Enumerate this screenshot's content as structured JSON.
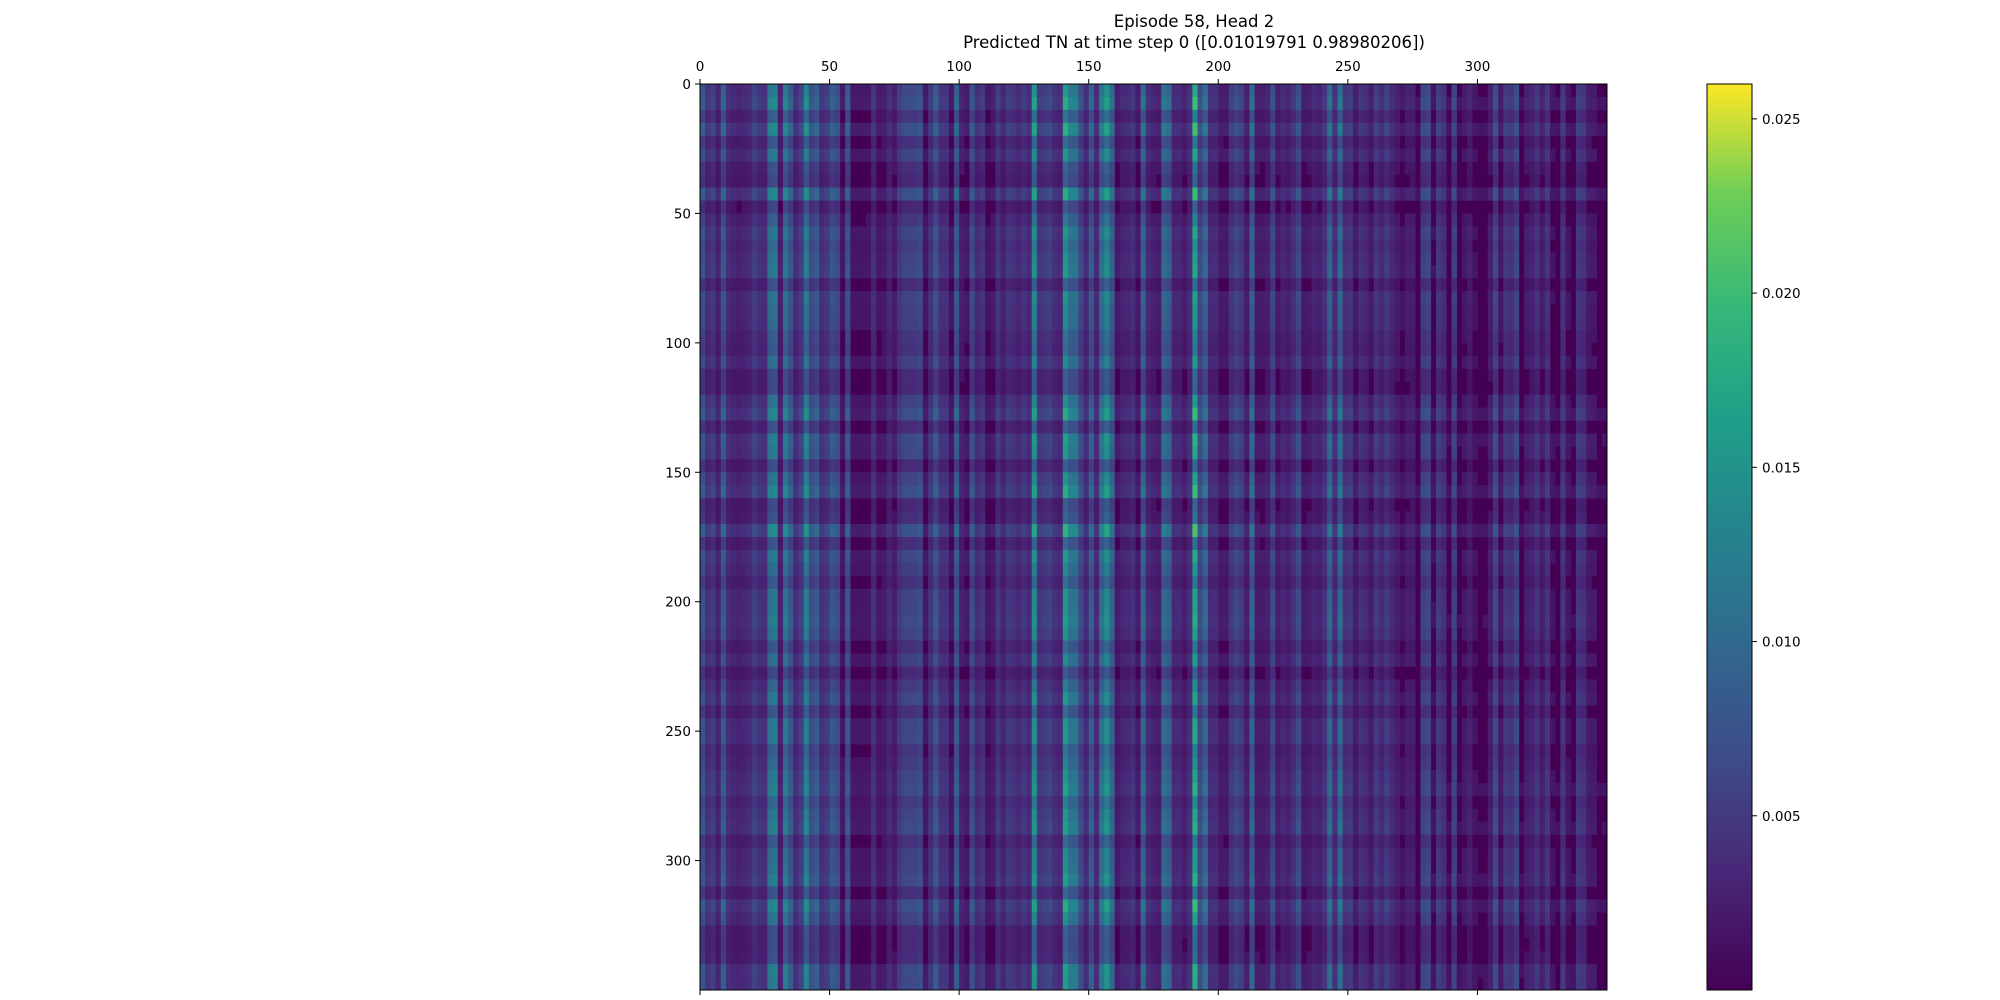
{
  "chart_data": {
    "type": "heatmap",
    "title_line1": "Episode 58, Head 2",
    "title_line2": "Predicted TN at time step 0 ([0.01019791 0.98980206])",
    "n_rows": 350,
    "n_cols": 350,
    "x_ticks": [
      0,
      50,
      100,
      150,
      200,
      250,
      300
    ],
    "y_ticks": [
      0,
      50,
      100,
      150,
      200,
      250,
      300
    ],
    "x_tick_position": "top",
    "colorbar": {
      "min": 0.0,
      "max": 0.026,
      "ticks": [
        0.005,
        0.01,
        0.015,
        0.02,
        0.025
      ],
      "tick_labels": [
        "0.005",
        "0.010",
        "0.015",
        "0.020",
        "0.025"
      ],
      "colormap": "viridis"
    },
    "column_weight_bands": [
      {
        "col_start": 0,
        "col_end": 6,
        "level": 0.35
      },
      {
        "col_start": 6,
        "col_end": 40,
        "level": 0.45
      },
      {
        "col_start": 38,
        "col_end": 41,
        "level": 0.85
      },
      {
        "col_start": 41,
        "col_end": 120,
        "level": 0.3
      },
      {
        "col_start": 120,
        "col_end": 160,
        "level": 0.55
      },
      {
        "col_start": 160,
        "col_end": 188,
        "level": 0.35
      },
      {
        "col_start": 188,
        "col_end": 193,
        "level": 0.6
      },
      {
        "col_start": 193,
        "col_end": 260,
        "level": 0.35
      },
      {
        "col_start": 260,
        "col_end": 350,
        "level": 0.22
      }
    ],
    "grid": false
  }
}
